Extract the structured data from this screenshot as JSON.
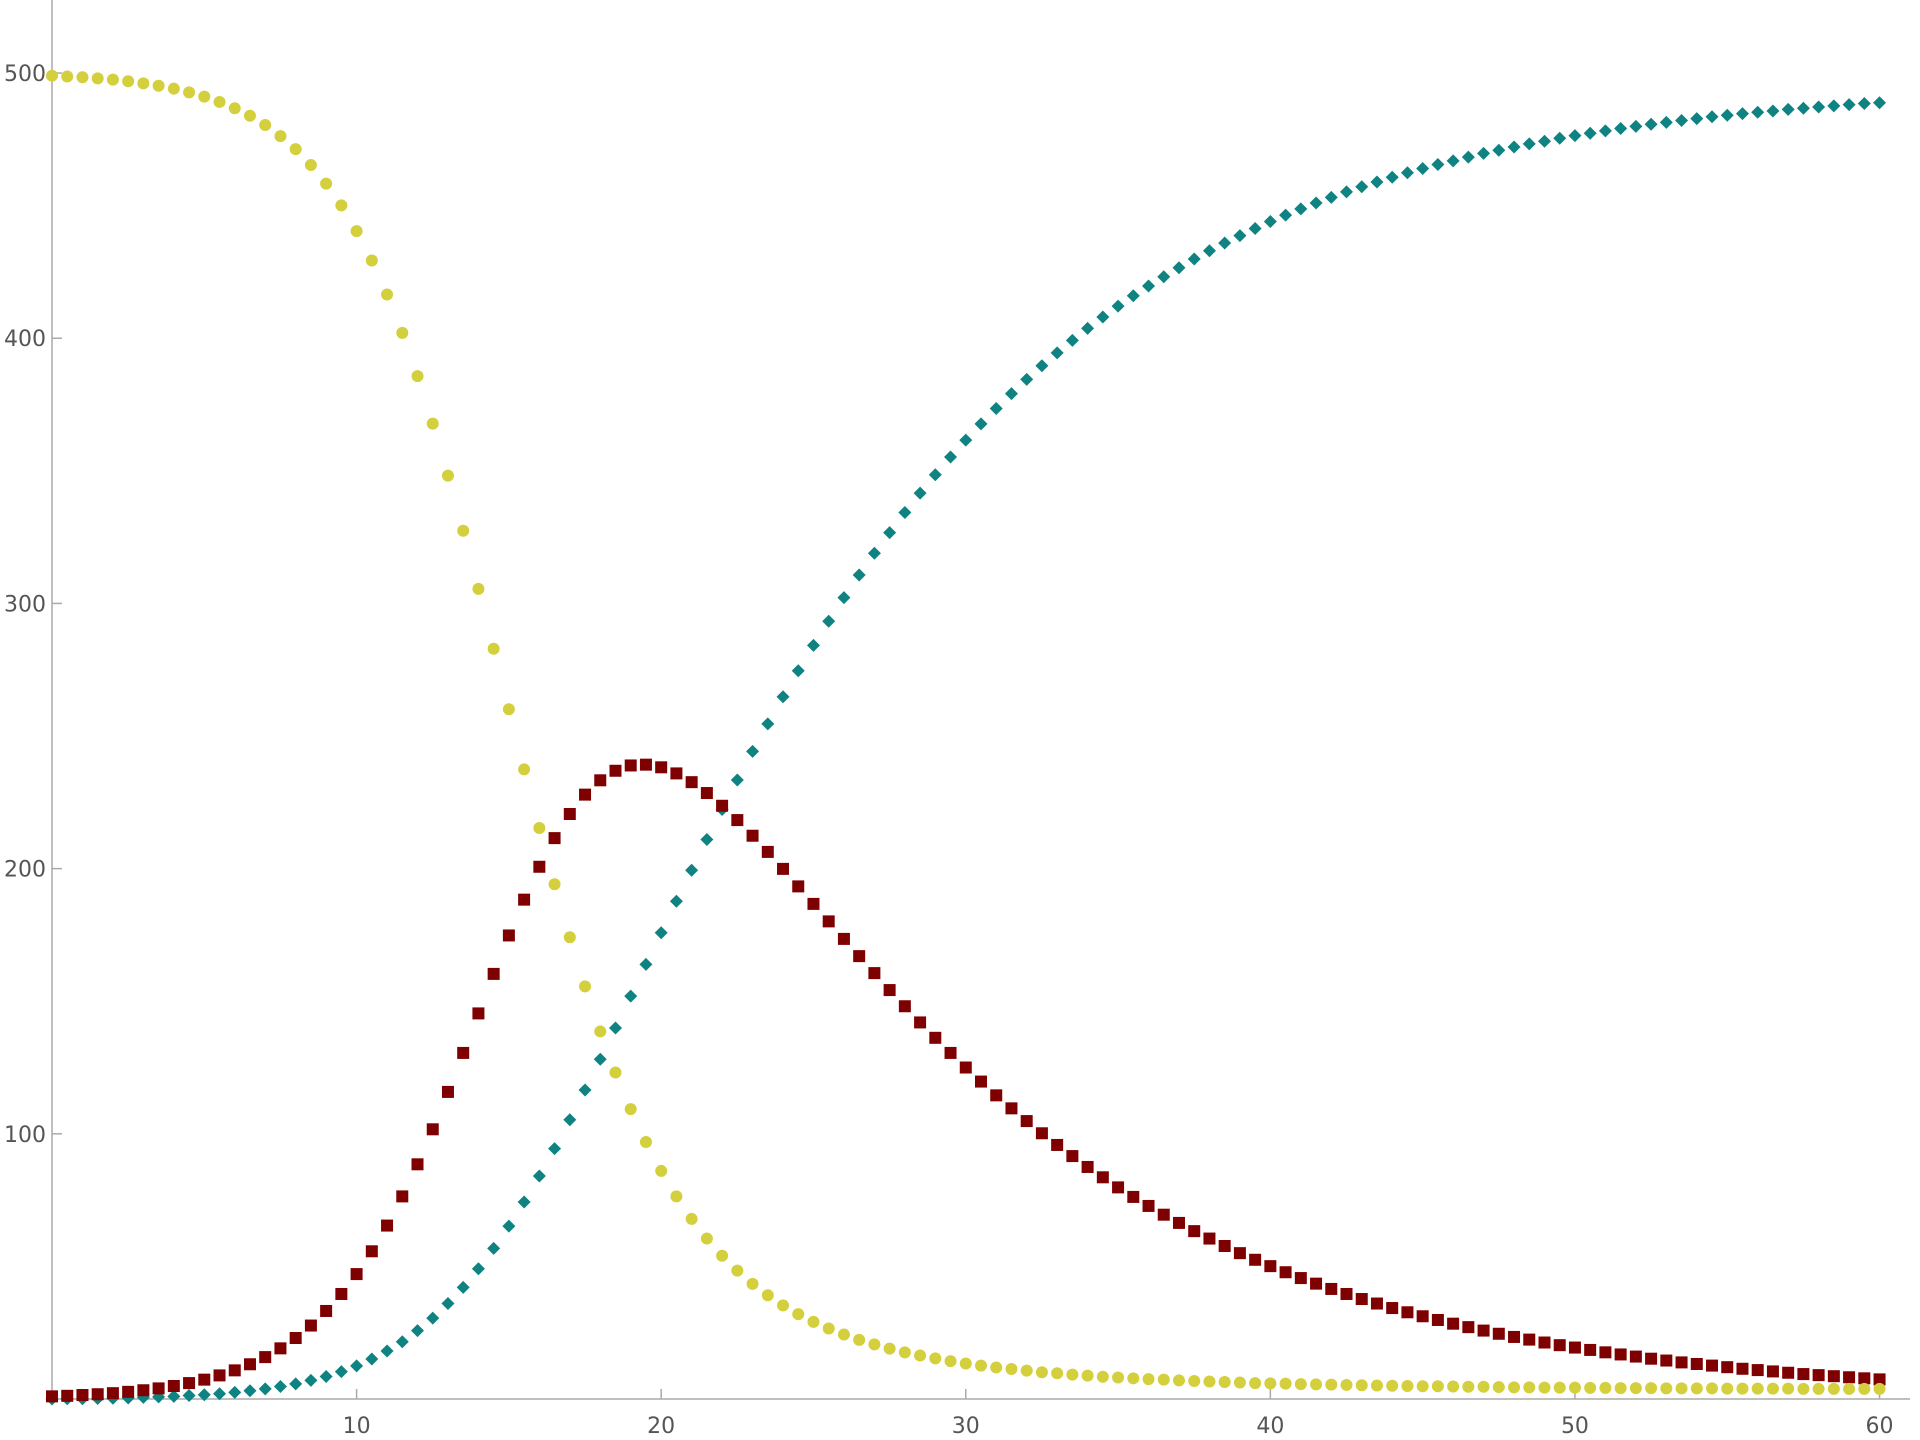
{
  "chart_data": {
    "type": "scatter",
    "x": [
      0,
      0.5,
      1,
      1.5,
      2,
      2.5,
      3,
      3.5,
      4,
      4.5,
      5,
      5.5,
      6,
      6.5,
      7,
      7.5,
      8,
      8.5,
      9,
      9.5,
      10,
      10.5,
      11,
      11.5,
      12,
      12.5,
      13,
      13.5,
      14,
      14.5,
      15,
      15.5,
      16,
      16.5,
      17,
      17.5,
      18,
      18.5,
      19,
      19.5,
      20,
      20.5,
      21,
      21.5,
      22,
      22.5,
      23,
      23.5,
      24,
      24.5,
      25,
      25.5,
      26,
      26.5,
      27,
      27.5,
      28,
      28.5,
      29,
      29.5,
      30,
      30.5,
      31,
      31.5,
      32,
      32.5,
      33,
      33.5,
      34,
      34.5,
      35,
      35.5,
      36,
      36.5,
      37,
      37.5,
      38,
      38.5,
      39,
      39.5,
      40,
      40.5,
      41,
      41.5,
      42,
      42.5,
      43,
      43.5,
      44,
      44.5,
      45,
      45.5,
      46,
      46.5,
      47,
      47.5,
      48,
      48.5,
      49,
      49.5,
      50,
      50.5,
      51,
      51.5,
      52,
      52.5,
      53,
      53.5,
      54,
      54.5,
      55,
      55.5,
      56,
      56.5,
      57,
      57.5,
      58,
      58.5,
      59,
      59.5,
      60
    ],
    "series": [
      {
        "color": "#d4cf3c",
        "marker": "circle",
        "values": [
          499,
          498.7,
          498.4,
          498,
          497.5,
          496.9,
          496.1,
          495.2,
          494.1,
          492.7,
          491.1,
          489.1,
          486.7,
          483.9,
          480.4,
          476.2,
          471.3,
          465.3,
          458.3,
          450.1,
          440.4,
          429.3,
          416.5,
          402,
          385.7,
          367.8,
          348.2,
          327.4,
          305.5,
          282.9,
          260.1,
          237.4,
          215.3,
          194.1,
          174.1,
          155.6,
          138.6,
          123.1,
          109.3,
          96.9,
          86,
          76.4,
          67.9,
          60.5,
          54,
          48.4,
          43.4,
          39.1,
          35.3,
          32,
          29.1,
          26.6,
          24.3,
          22.3,
          20.6,
          19,
          17.6,
          16.4,
          15.3,
          14.3,
          13.4,
          12.6,
          11.9,
          11.3,
          10.7,
          10.1,
          9.7,
          9.2,
          8.8,
          8.4,
          8.1,
          7.8,
          7.5,
          7.3,
          7,
          6.8,
          6.6,
          6.4,
          6.2,
          6,
          5.9,
          5.8,
          5.6,
          5.5,
          5.4,
          5.3,
          5.2,
          5.1,
          5,
          4.9,
          4.8,
          4.8,
          4.7,
          4.6,
          4.6,
          4.5,
          4.4,
          4.4,
          4.3,
          4.3,
          4.3,
          4.2,
          4.2,
          4.1,
          4.1,
          4.1,
          4,
          4,
          4,
          4,
          3.9,
          3.9,
          3.9,
          3.9,
          3.9,
          3.8,
          3.8,
          3.8,
          3.8,
          3.8,
          3.8
        ]
      },
      {
        "color": "#7f0000",
        "marker": "square",
        "values": [
          1,
          1.2,
          1.5,
          1.8,
          2.2,
          2.7,
          3.3,
          4,
          4.9,
          6,
          7.3,
          8.9,
          10.8,
          13.1,
          15.8,
          19.1,
          23,
          27.7,
          33.2,
          39.6,
          47.1,
          55.7,
          65.4,
          76.4,
          88.5,
          101.7,
          115.8,
          130.5,
          145.4,
          160.3,
          174.8,
          188.3,
          200.7,
          211.5,
          220.6,
          227.9,
          233.3,
          236.9,
          238.9,
          239.2,
          238.2,
          235.9,
          232.6,
          228.5,
          223.7,
          218.3,
          212.4,
          206.3,
          199.9,
          193.3,
          186.7,
          180.1,
          173.5,
          167,
          160.6,
          154.2,
          148.1,
          142,
          136.2,
          130.5,
          125,
          119.7,
          114.5,
          109.6,
          104.8,
          100.2,
          95.8,
          91.6,
          87.5,
          83.6,
          79.8,
          76.2,
          72.8,
          69.5,
          66.4,
          63.3,
          60.5,
          57.7,
          55,
          52.5,
          50.1,
          47.8,
          45.6,
          43.5,
          41.5,
          39.6,
          37.7,
          36,
          34.3,
          32.7,
          31.2,
          29.8,
          28.4,
          27.1,
          25.8,
          24.6,
          23.4,
          22.4,
          21.3,
          20.3,
          19.4,
          18.5,
          17.6,
          16.8,
          16,
          15.2,
          14.5,
          13.8,
          13.2,
          12.6,
          12,
          11.4,
          10.9,
          10.4,
          9.9,
          9.4,
          9,
          8.6,
          8.2,
          7.8,
          7.4
        ]
      },
      {
        "color": "#0f8282",
        "marker": "diamond",
        "values": [
          0,
          0.1,
          0.1,
          0.2,
          0.3,
          0.4,
          0.6,
          0.8,
          1,
          1.3,
          1.6,
          2,
          2.5,
          3.1,
          3.8,
          4.7,
          5.7,
          7,
          8.5,
          10.3,
          12.5,
          15.1,
          18.1,
          21.6,
          25.8,
          30.5,
          36,
          42.1,
          49.1,
          56.8,
          65.2,
          74.3,
          84.1,
          94.4,
          105.3,
          116.5,
          128.1,
          139.9,
          151.9,
          163.9,
          175.8,
          187.7,
          199.4,
          211,
          222.3,
          233.4,
          244.2,
          254.6,
          264.8,
          274.6,
          284.2,
          293.3,
          302.2,
          310.7,
          318.9,
          326.7,
          334.3,
          341.6,
          348.5,
          355.2,
          361.6,
          367.7,
          373.5,
          379.1,
          384.5,
          389.6,
          394.5,
          399.2,
          403.7,
          408,
          412.1,
          416,
          419.7,
          423.2,
          426.6,
          429.9,
          433,
          435.9,
          438.7,
          441.4,
          444,
          446.4,
          448.8,
          451,
          453.1,
          455.2,
          457.1,
          458.9,
          460.7,
          462.4,
          464,
          465.5,
          466.9,
          468.3,
          469.7,
          470.9,
          472.1,
          473.3,
          474.3,
          475.4,
          476.4,
          477.3,
          478.2,
          479.1,
          479.9,
          480.7,
          481.4,
          482.1,
          482.8,
          483.5,
          484.1,
          484.7,
          485.2,
          485.7,
          486.3,
          486.7,
          487.2,
          487.6,
          488.1,
          488.5,
          488.8
        ]
      }
    ],
    "xlim": [
      0,
      61
    ],
    "ylim": [
      0,
      520
    ],
    "xticks": [
      10,
      20,
      30,
      40,
      50,
      60
    ],
    "yticks": [
      100,
      200,
      300,
      400,
      500
    ]
  }
}
